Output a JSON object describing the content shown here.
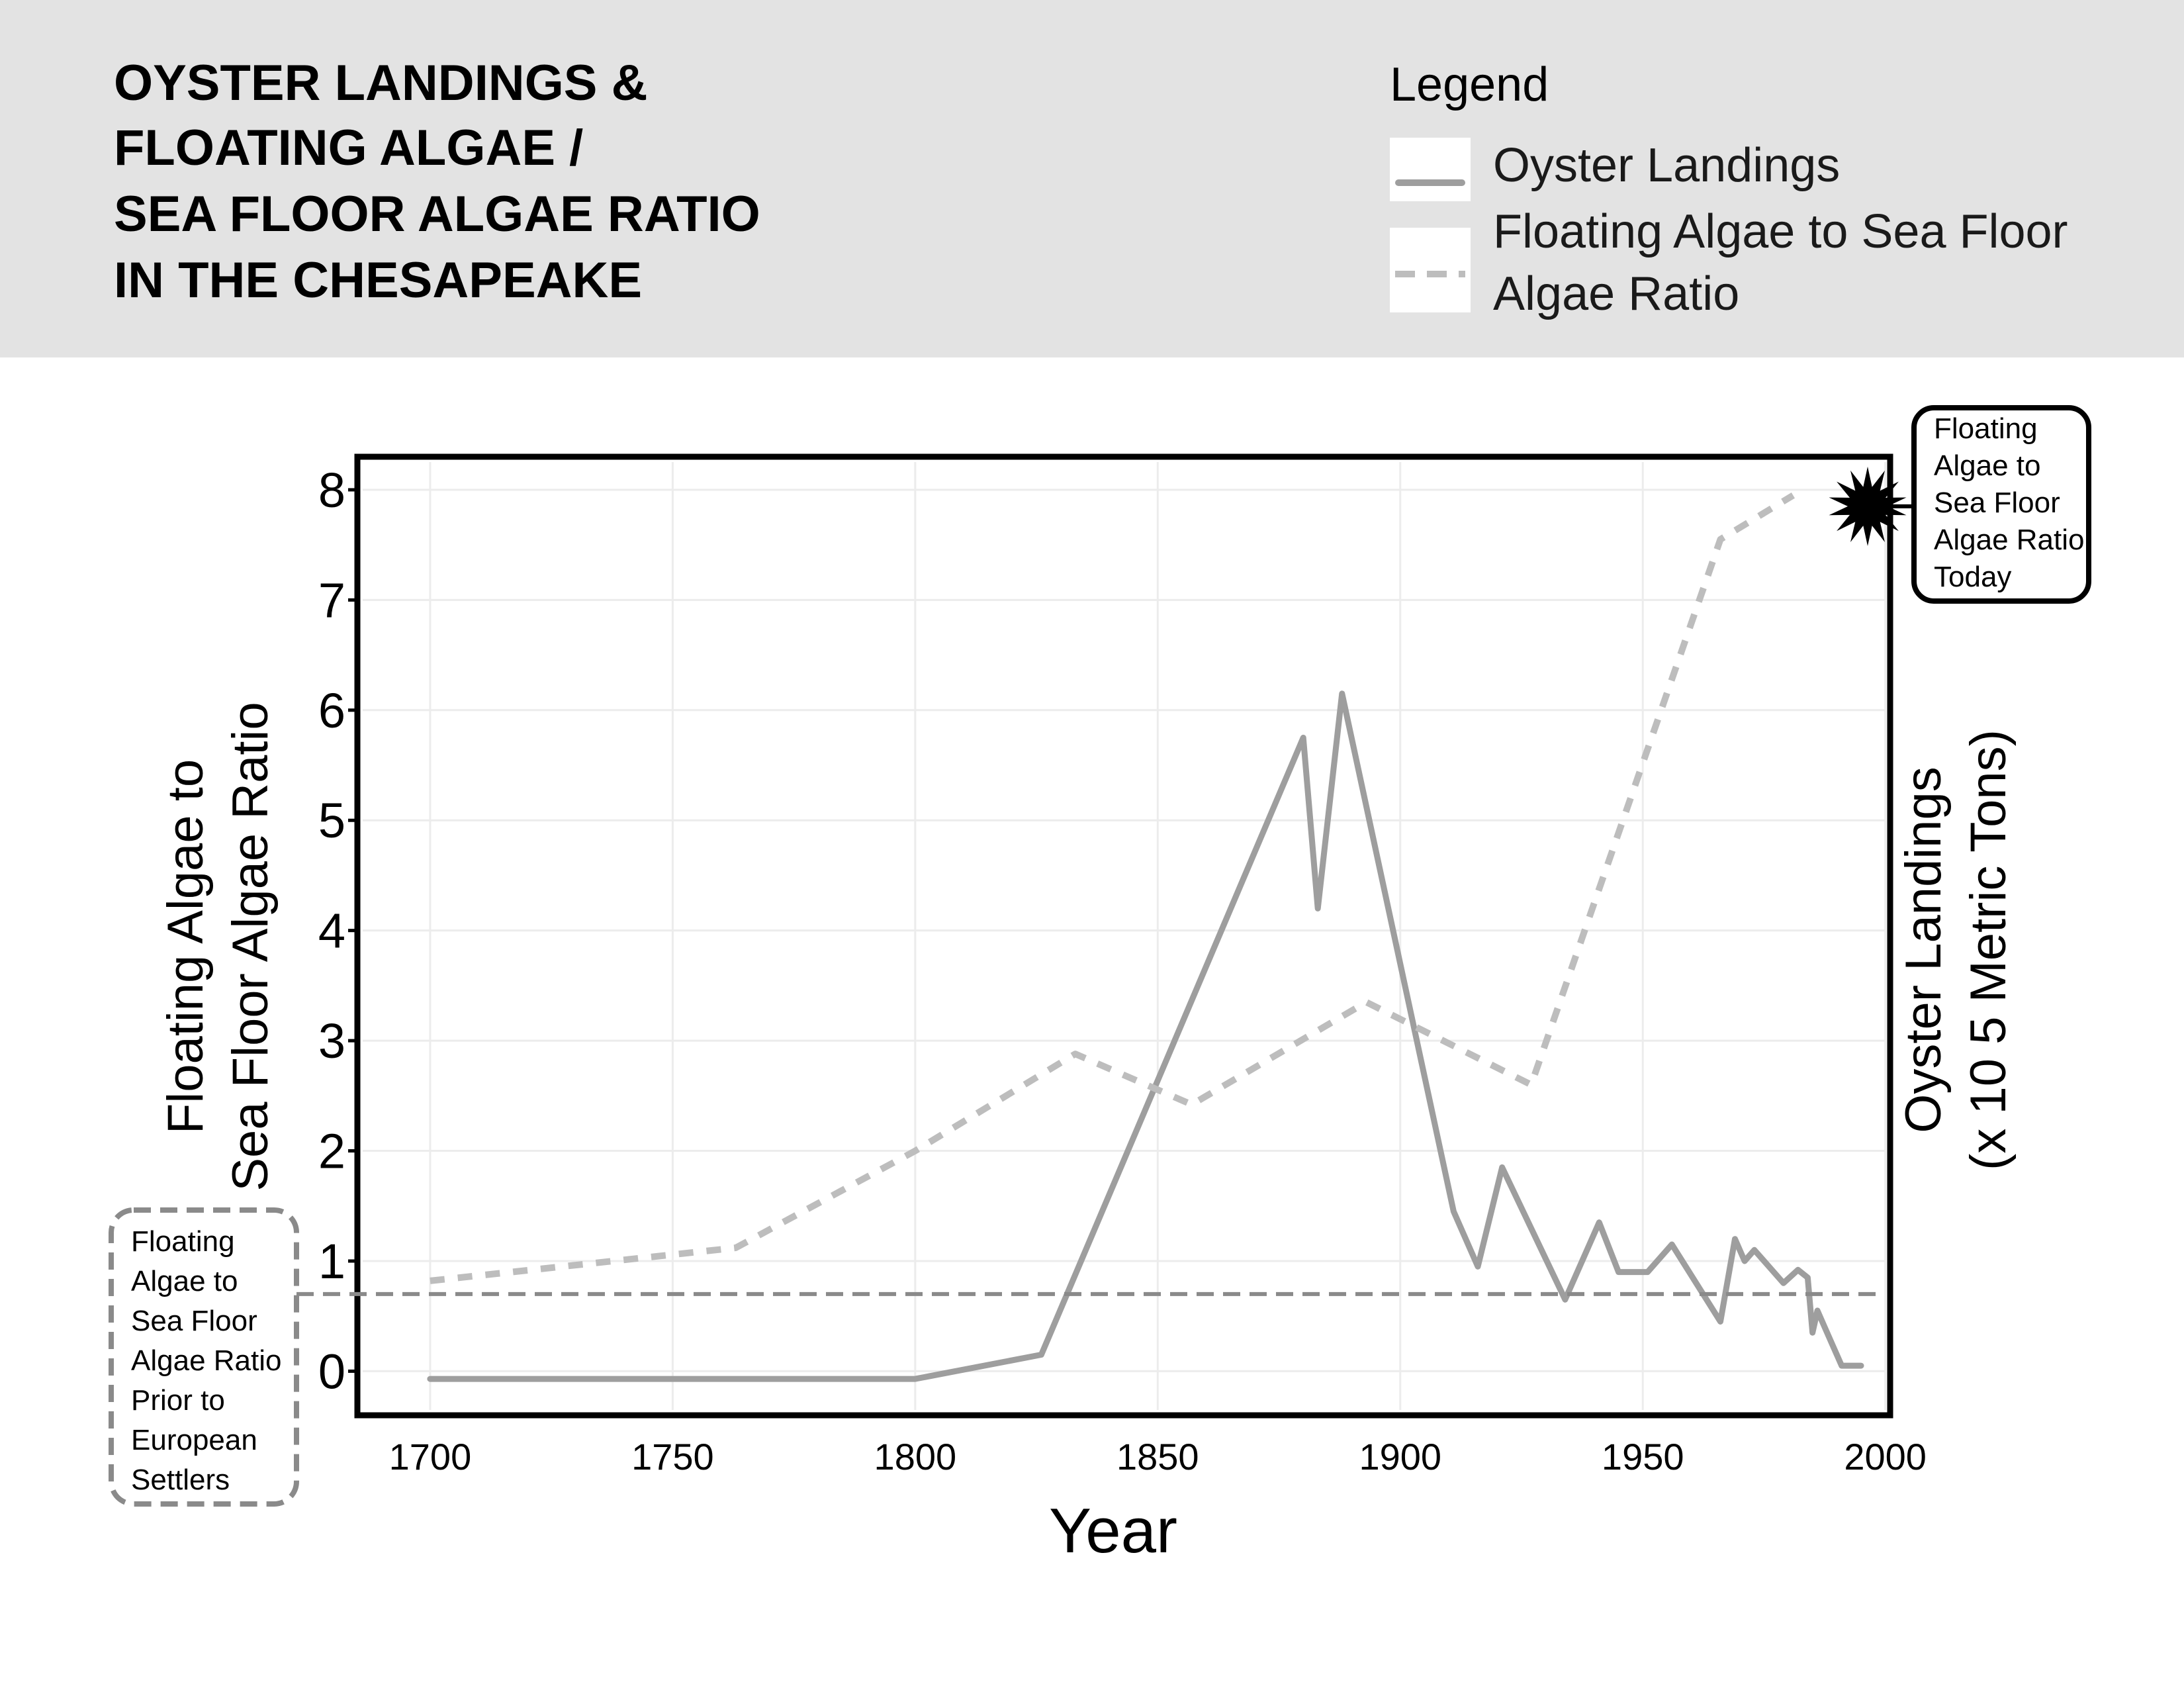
{
  "header": {
    "title_lines": [
      "OYSTER LANDINGS &",
      "FLOATING ALGAE /",
      "SEA FLOOR ALGAE RATIO",
      "IN THE CHESAPEAKE"
    ],
    "background": "#e3e3e3"
  },
  "legend": {
    "title": "Legend",
    "items": [
      {
        "label": "Oyster Landings",
        "style": "solid",
        "color": "#9e9e9e"
      },
      {
        "label_lines": [
          "Floating Algae to Sea Floor",
          "Algae Ratio"
        ],
        "style": "dashed",
        "color": "#bdbdbd"
      }
    ]
  },
  "annotations": {
    "today": {
      "text": "Floating\nAlgae to\nSea Floor\nAlgae Ratio\nToday",
      "value": 8.0
    },
    "prior": {
      "text": "Floating\nAlgae to\nSea Floor\nAlgae Ratio\nPrior to\nEuropean\nSettlers",
      "value": 0.7
    }
  },
  "chart_data": {
    "type": "line",
    "xlabel": "Year",
    "ylabel_left": [
      "Floating Algae to",
      "Sea Floor Algae Ratio"
    ],
    "ylabel_right": [
      "Oyster Landings",
      "(x 10 5 Metric Tons)"
    ],
    "xlim": [
      1685,
      2001
    ],
    "ylim": [
      -0.4,
      8.3
    ],
    "x_ticks": [
      1700,
      1750,
      1800,
      1850,
      1900,
      1950,
      2000
    ],
    "y_ticks": [
      0,
      1,
      2,
      3,
      4,
      5,
      6,
      7,
      8
    ],
    "x_tick_labels": [
      "1700",
      "1750",
      "1800",
      "1850",
      "1900",
      "1950",
      "2000"
    ],
    "y_tick_labels": [
      "0",
      "1",
      "2",
      "3",
      "4",
      "5",
      "6",
      "7",
      "8"
    ],
    "grid": true,
    "series": [
      {
        "name": "Oyster Landings",
        "style": "solid",
        "color": "#9e9e9e",
        "x": [
          1700,
          1800,
          1826,
          1880,
          1883,
          1888,
          1911,
          1916,
          1921,
          1934,
          1941,
          1945,
          1951,
          1956,
          1966,
          1969,
          1971,
          1973,
          1979,
          1982,
          1984,
          1985,
          1986,
          1988,
          1991,
          1995
        ],
        "y": [
          -0.07,
          -0.07,
          0.15,
          5.75,
          4.2,
          6.15,
          1.45,
          0.95,
          1.85,
          0.65,
          1.35,
          0.9,
          0.9,
          1.15,
          0.45,
          1.2,
          1.0,
          1.1,
          0.8,
          0.92,
          0.85,
          0.35,
          0.55,
          0.35,
          0.05,
          0.05
        ]
      },
      {
        "name": "Floating Algae to Sea Floor Algae Ratio",
        "style": "dashed",
        "color": "#bdbdbd",
        "x": [
          1700,
          1763,
          1800,
          1833,
          1857,
          1893,
          1927,
          1966,
          1981
        ],
        "y": [
          0.82,
          1.12,
          2.0,
          2.88,
          2.42,
          3.35,
          2.6,
          7.55,
          7.95
        ]
      },
      {
        "name": "Prior to European Settlers",
        "style": "reference",
        "color": "#8a8a8a",
        "y": 0.7
      }
    ],
    "markers": [
      {
        "type": "starburst",
        "x": 1998,
        "y": 7.85
      }
    ]
  }
}
